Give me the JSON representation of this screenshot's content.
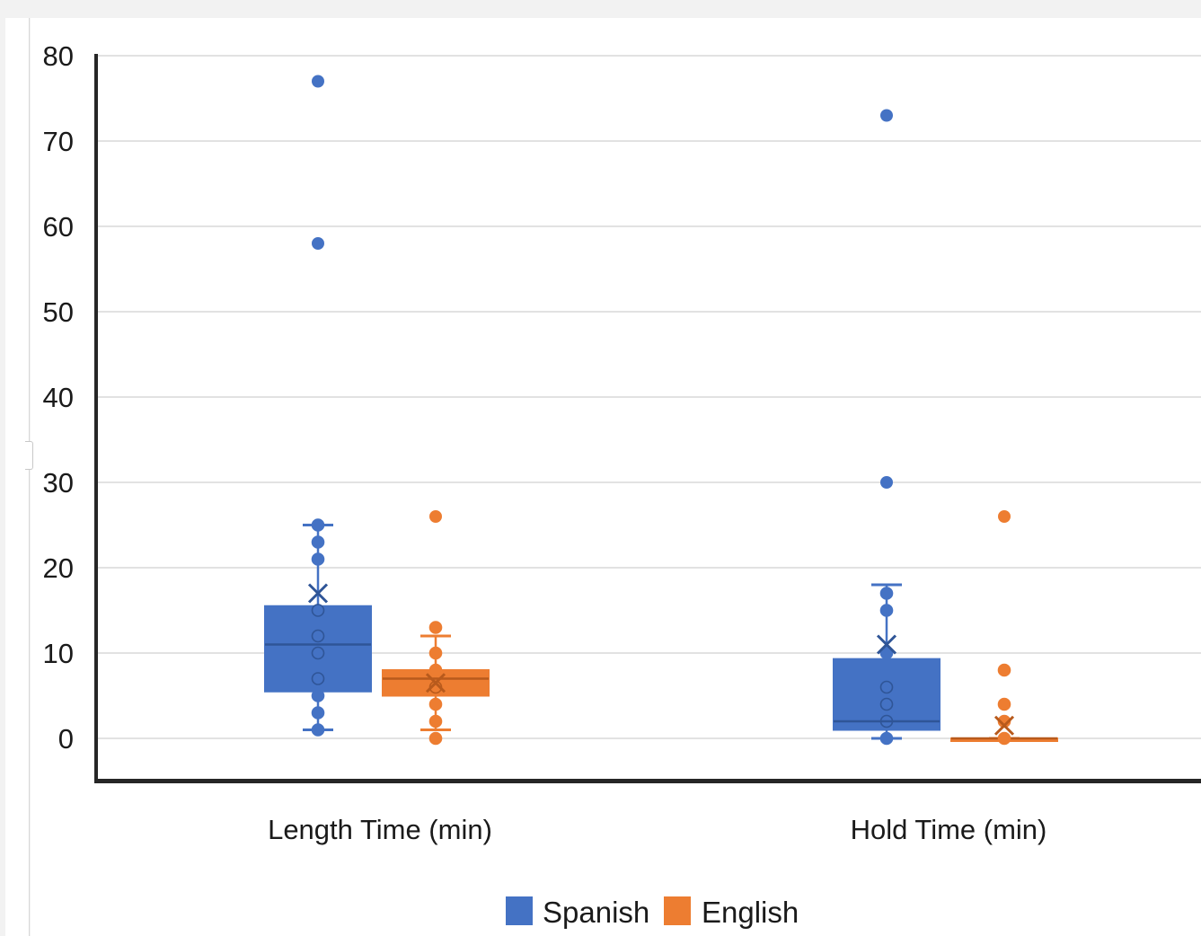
{
  "chart_data": {
    "type": "box",
    "categories": [
      "Length Time (min)",
      "Hold Time (min)"
    ],
    "y_ticks": [
      "0",
      "10",
      "20",
      "30",
      "40",
      "50",
      "60",
      "70",
      "80"
    ],
    "ylim": [
      -5,
      80
    ],
    "grid": true,
    "legend_position": "bottom",
    "series": [
      {
        "name": "Spanish",
        "color": "#4472c4",
        "boxes": [
          {
            "min": 1,
            "q1": 5.5,
            "median": 11,
            "q3": 15.5,
            "max": 25,
            "mean": 17,
            "points": [
              1,
              3,
              5,
              7,
              10,
              12,
              15,
              21,
              23,
              25
            ],
            "outliers": [
              58,
              77
            ]
          },
          {
            "min": 0,
            "q1": 1,
            "median": 2,
            "q3": 9.3,
            "max": 18,
            "mean": 11,
            "points": [
              0,
              2,
              4,
              6,
              10,
              15,
              17
            ],
            "outliers": [
              30,
              73
            ]
          }
        ]
      },
      {
        "name": "English",
        "color": "#ed7d31",
        "boxes": [
          {
            "min": 1,
            "q1": 5,
            "median": 7,
            "q3": 8,
            "max": 12,
            "mean": 6.5,
            "points": [
              0,
              2,
              4,
              6,
              8,
              10,
              13
            ],
            "outliers": [
              26
            ]
          },
          {
            "min": 0,
            "q1": 0,
            "median": 0,
            "q3": 0,
            "max": 0,
            "mean": 1.5,
            "points": [
              0,
              2,
              4,
              8
            ],
            "outliers": [
              26
            ]
          }
        ]
      }
    ]
  }
}
